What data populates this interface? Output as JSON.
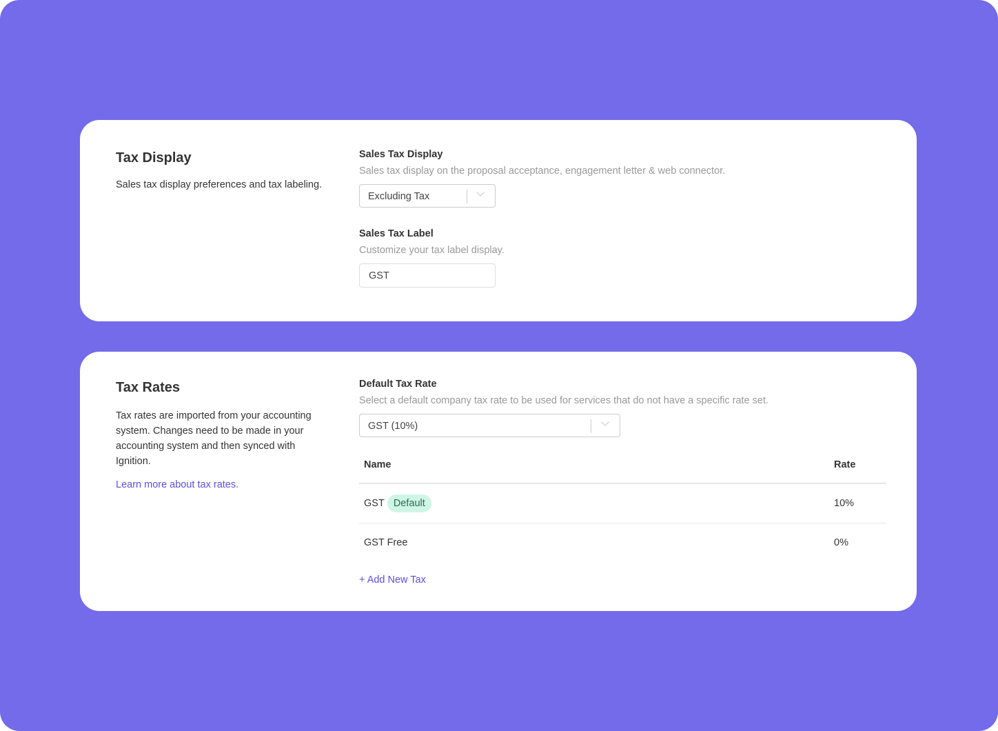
{
  "tax_display": {
    "title": "Tax Display",
    "description": "Sales tax display preferences and tax labeling.",
    "sales_tax_display": {
      "label": "Sales Tax Display",
      "hint": "Sales tax display on the proposal acceptance, engagement letter & web connector.",
      "value": "Excluding Tax"
    },
    "sales_tax_label": {
      "label": "Sales Tax Label",
      "hint": "Customize your tax label display.",
      "value": "GST"
    }
  },
  "tax_rates": {
    "title": "Tax Rates",
    "description": "Tax rates are imported from your accounting system. Changes need to be made in your accounting system and then synced with Ignition.",
    "learn_more": "Learn more about tax rates.",
    "default_tax_rate": {
      "label": "Default Tax Rate",
      "hint": "Select a default company tax rate to be used for services that do not have a specific rate set.",
      "value": "GST (10%)"
    },
    "table": {
      "columns": [
        "Name",
        "Rate"
      ],
      "rows": [
        {
          "name": "GST",
          "badge": "Default",
          "rate": "10%"
        },
        {
          "name": "GST Free",
          "rate": "0%"
        }
      ]
    },
    "add_new": "+ Add New Tax"
  },
  "colors": {
    "background": "#736bea",
    "accent": "#5a4fe0",
    "badge_bg": "#cff5e6"
  }
}
